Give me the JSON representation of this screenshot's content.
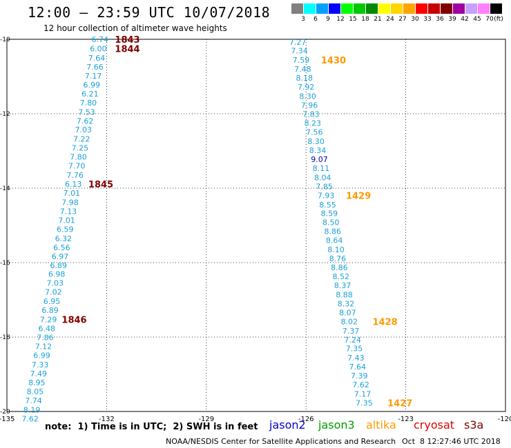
{
  "header": {
    "title": "12:00 – 23:59 UTC 10/07/2018",
    "subtitle": "12 hour collection of altimeter wave heights"
  },
  "legend": {
    "unit": "(ft)",
    "bins": [
      {
        "label": "3",
        "color": "#808080"
      },
      {
        "label": "6",
        "color": "#00ffff"
      },
      {
        "label": "9",
        "color": "#00a0ff"
      },
      {
        "label": "12",
        "color": "#0000ff"
      },
      {
        "label": "15",
        "color": "#00ff00"
      },
      {
        "label": "18",
        "color": "#00c800"
      },
      {
        "label": "21",
        "color": "#008c00"
      },
      {
        "label": "24",
        "color": "#ffff00"
      },
      {
        "label": "27",
        "color": "#ffd700"
      },
      {
        "label": "30",
        "color": "#ffa500"
      },
      {
        "label": "33",
        "color": "#ff0000"
      },
      {
        "label": "36",
        "color": "#c80000"
      },
      {
        "label": "39",
        "color": "#800000"
      },
      {
        "label": "42",
        "color": "#a000a0"
      },
      {
        "label": "45",
        "color": "#c8a0ff"
      },
      {
        "label": "70",
        "color": "#ff80ff"
      },
      {
        "label": "",
        "color": "#000000"
      }
    ]
  },
  "footer": {
    "note": "note:  1) Time is in UTC;  2) SWH is in feet",
    "satellites": [
      {
        "name": "jason2",
        "color": "#0000cc"
      },
      {
        "name": "jason3",
        "color": "#009900"
      },
      {
        "name": "altika",
        "color": "#ff9900"
      },
      {
        "name": "cryosat",
        "color": "#dd0000"
      },
      {
        "name": "s3a",
        "color": "#800000"
      }
    ],
    "credit": "NOAA/NESDIS Center for Satellite Applications and Research",
    "timestamp": "Oct  8 12:27:46 UTC 2018"
  },
  "chart_data": {
    "type": "scatter",
    "xlim": [
      -135,
      -120
    ],
    "ylim": [
      -20,
      -10
    ],
    "x_ticks": [
      "-135",
      "-132",
      "-129",
      "-126",
      "-123",
      "-120"
    ],
    "y_ticks": [
      "-10",
      "-12",
      "-14",
      "-16",
      "-18",
      "-20"
    ],
    "grid": true,
    "value_color": "#1aa0d8",
    "track1_values": [
      {
        "x": -132.2,
        "y": -10.0,
        "v": "6.74"
      },
      {
        "x": -132.25,
        "y": -10.25,
        "v": "6.00"
      },
      {
        "x": -132.3,
        "y": -10.5,
        "v": "7.64"
      },
      {
        "x": -132.35,
        "y": -10.74,
        "v": "7.66"
      },
      {
        "x": -132.4,
        "y": -10.98,
        "v": "7.17"
      },
      {
        "x": -132.45,
        "y": -11.22,
        "v": "6.99"
      },
      {
        "x": -132.5,
        "y": -11.46,
        "v": "6.21"
      },
      {
        "x": -132.55,
        "y": -11.7,
        "v": "7.80"
      },
      {
        "x": -132.6,
        "y": -11.95,
        "v": "7.53"
      },
      {
        "x": -132.65,
        "y": -12.19,
        "v": "7.62"
      },
      {
        "x": -132.7,
        "y": -12.43,
        "v": "7.03"
      },
      {
        "x": -132.75,
        "y": -12.68,
        "v": "7.22"
      },
      {
        "x": -132.8,
        "y": -12.92,
        "v": "7.25"
      },
      {
        "x": -132.85,
        "y": -13.16,
        "v": "7.80"
      },
      {
        "x": -132.9,
        "y": -13.4,
        "v": "7.70"
      },
      {
        "x": -132.95,
        "y": -13.65,
        "v": "7.76"
      },
      {
        "x": -133.0,
        "y": -13.89,
        "v": "6.13"
      },
      {
        "x": -133.05,
        "y": -14.13,
        "v": "7.01"
      },
      {
        "x": -133.1,
        "y": -14.38,
        "v": "7.98"
      },
      {
        "x": -133.15,
        "y": -14.62,
        "v": "7.13"
      },
      {
        "x": -133.2,
        "y": -14.86,
        "v": "7.01"
      },
      {
        "x": -133.25,
        "y": -15.1,
        "v": "6.59"
      },
      {
        "x": -133.3,
        "y": -15.35,
        "v": "6.32"
      },
      {
        "x": -133.35,
        "y": -15.59,
        "v": "6.56"
      },
      {
        "x": -133.4,
        "y": -15.83,
        "v": "6.97"
      },
      {
        "x": -133.45,
        "y": -16.07,
        "v": "6.89"
      },
      {
        "x": -133.5,
        "y": -16.31,
        "v": "6.98"
      },
      {
        "x": -133.55,
        "y": -16.55,
        "v": "7.03"
      },
      {
        "x": -133.6,
        "y": -16.79,
        "v": "7.02"
      },
      {
        "x": -133.65,
        "y": -17.04,
        "v": "6.95"
      },
      {
        "x": -133.7,
        "y": -17.28,
        "v": "6.89"
      },
      {
        "x": -133.75,
        "y": -17.53,
        "v": "7.29"
      },
      {
        "x": -133.8,
        "y": -17.77,
        "v": "6.48"
      },
      {
        "x": -133.85,
        "y": -18.01,
        "v": "7.86"
      },
      {
        "x": -133.9,
        "y": -18.25,
        "v": "7.12"
      },
      {
        "x": -133.95,
        "y": -18.49,
        "v": "6.99"
      },
      {
        "x": -134.0,
        "y": -18.74,
        "v": "7.33"
      },
      {
        "x": -134.05,
        "y": -18.98,
        "v": "7.49"
      },
      {
        "x": -134.1,
        "y": -19.22,
        "v": "8.95"
      },
      {
        "x": -134.15,
        "y": -19.46,
        "v": "8.05"
      },
      {
        "x": -134.2,
        "y": -19.7,
        "v": "7.74"
      },
      {
        "x": -134.25,
        "y": -19.95,
        "v": "8.19"
      },
      {
        "x": -134.3,
        "y": -20.19,
        "v": "7.62"
      }
    ],
    "track2_values": [
      {
        "x": -126.25,
        "y": -10.07,
        "v": "7.27"
      },
      {
        "x": -126.2,
        "y": -10.31,
        "v": "7.34"
      },
      {
        "x": -126.15,
        "y": -10.56,
        "v": "7.59"
      },
      {
        "x": -126.1,
        "y": -10.8,
        "v": "7.48"
      },
      {
        "x": -126.05,
        "y": -11.04,
        "v": "8.18"
      },
      {
        "x": -126.0,
        "y": -11.28,
        "v": "7.92"
      },
      {
        "x": -125.95,
        "y": -11.53,
        "v": "8.30"
      },
      {
        "x": -125.9,
        "y": -11.77,
        "v": "7.96"
      },
      {
        "x": -125.85,
        "y": -12.01,
        "v": "7.83"
      },
      {
        "x": -125.8,
        "y": -12.25,
        "v": "8.23"
      },
      {
        "x": -125.75,
        "y": -12.49,
        "v": "7.56"
      },
      {
        "x": -125.7,
        "y": -12.74,
        "v": "8.30"
      },
      {
        "x": -125.65,
        "y": -12.98,
        "v": "8.34"
      },
      {
        "x": -125.6,
        "y": -13.22,
        "v": "9.07",
        "color": "#0000aa"
      },
      {
        "x": -125.55,
        "y": -13.46,
        "v": "8.11"
      },
      {
        "x": -125.5,
        "y": -13.71,
        "v": "8.04"
      },
      {
        "x": -125.45,
        "y": -13.95,
        "v": "7.85"
      },
      {
        "x": -125.4,
        "y": -14.19,
        "v": "7.93"
      },
      {
        "x": -125.35,
        "y": -14.44,
        "v": "8.55"
      },
      {
        "x": -125.3,
        "y": -14.68,
        "v": "8.59"
      },
      {
        "x": -125.25,
        "y": -14.92,
        "v": "8.50"
      },
      {
        "x": -125.2,
        "y": -15.16,
        "v": "8.86"
      },
      {
        "x": -125.15,
        "y": -15.4,
        "v": "8.64"
      },
      {
        "x": -125.1,
        "y": -15.65,
        "v": "8.10"
      },
      {
        "x": -125.05,
        "y": -15.89,
        "v": "8.76"
      },
      {
        "x": -125.0,
        "y": -16.13,
        "v": "8.86"
      },
      {
        "x": -124.95,
        "y": -16.37,
        "v": "8.52"
      },
      {
        "x": -124.9,
        "y": -16.61,
        "v": "8.37"
      },
      {
        "x": -124.85,
        "y": -16.86,
        "v": "8.88"
      },
      {
        "x": -124.8,
        "y": -17.1,
        "v": "8.32"
      },
      {
        "x": -124.75,
        "y": -17.34,
        "v": "8.07"
      },
      {
        "x": -124.7,
        "y": -17.58,
        "v": "8.02"
      },
      {
        "x": -124.65,
        "y": -17.83,
        "v": "7.37"
      },
      {
        "x": -124.6,
        "y": -18.07,
        "v": "7.24"
      },
      {
        "x": -124.55,
        "y": -18.31,
        "v": "7.35"
      },
      {
        "x": -124.5,
        "y": -18.56,
        "v": "7.43"
      },
      {
        "x": -124.45,
        "y": -18.8,
        "v": "7.64"
      },
      {
        "x": -124.4,
        "y": -19.04,
        "v": "7.39"
      },
      {
        "x": -124.35,
        "y": -19.28,
        "v": "7.62"
      },
      {
        "x": -124.3,
        "y": -19.53,
        "v": "7.17"
      },
      {
        "x": -124.25,
        "y": -19.77,
        "v": "7.35"
      }
    ],
    "time_labels": [
      {
        "x": -131.75,
        "y": -10.0,
        "t": "1843",
        "color": "#800000"
      },
      {
        "x": -131.75,
        "y": -10.25,
        "t": "1844",
        "color": "#800000"
      },
      {
        "x": -132.55,
        "y": -13.89,
        "t": "1845",
        "color": "#800000"
      },
      {
        "x": -133.35,
        "y": -17.53,
        "t": "1846",
        "color": "#800000"
      },
      {
        "x": -125.55,
        "y": -10.56,
        "t": "1430",
        "color": "#ff9900"
      },
      {
        "x": -124.8,
        "y": -14.19,
        "t": "1429",
        "color": "#ff9900"
      },
      {
        "x": -124.0,
        "y": -17.58,
        "t": "1428",
        "color": "#ff9900"
      },
      {
        "x": -123.55,
        "y": -19.77,
        "t": "1427",
        "color": "#ff9900"
      }
    ]
  }
}
